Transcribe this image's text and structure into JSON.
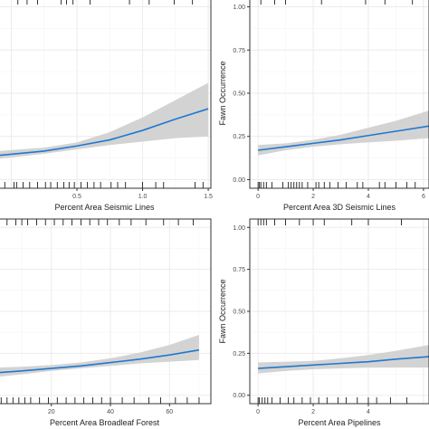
{
  "colors": {
    "panel_background": "#ffffff",
    "grid_major": "#ebebeb",
    "grid_minor": "#f5f5f5",
    "panel_border": "#333333",
    "line": "#1f78d1",
    "ribbon": "#d3d3d3",
    "rug": "#000000"
  },
  "chart_data": [
    {
      "id": "seismic-lines",
      "type": "line",
      "xlabel": "Percent Area Seismic Lines",
      "ylabel": "",
      "x_ticks": [
        "0.5",
        "1.0",
        "1.5"
      ],
      "x_tick_values": [
        0.5,
        1.0,
        1.5
      ],
      "y_ticks": [],
      "xlim": [
        -0.1,
        1.52
      ],
      "ylim": [
        -0.05,
        1.05
      ],
      "series": [
        {
          "x": [
            -0.1,
            0.25,
            0.5,
            0.75,
            1.0,
            1.25,
            1.5
          ],
          "y": [
            0.14,
            0.165,
            0.195,
            0.23,
            0.285,
            0.35,
            0.41
          ],
          "lower": [
            0.12,
            0.15,
            0.175,
            0.2,
            0.22,
            0.24,
            0.25
          ],
          "upper": [
            0.165,
            0.185,
            0.215,
            0.275,
            0.36,
            0.46,
            0.56
          ]
        }
      ],
      "rug_top": [
        0.05,
        0.12,
        0.2,
        0.38,
        0.42,
        0.47,
        0.6,
        0.9,
        1.05,
        1.24,
        1.38
      ],
      "rug_bottom": [
        -0.05,
        0.02,
        0.04,
        0.09,
        0.14,
        0.2,
        0.26,
        0.3,
        0.35,
        0.4,
        0.44,
        0.48,
        0.53,
        0.58,
        0.63,
        0.68,
        0.76,
        0.81,
        0.87,
        1.0,
        1.1,
        1.16,
        1.4,
        1.46
      ]
    },
    {
      "id": "3d-seismic-lines",
      "type": "line",
      "xlabel": "Percent Area 3D Seismic Lines",
      "ylabel": "Fawn Occurrence",
      "x_ticks": [
        "0",
        "2",
        "4",
        "6"
      ],
      "x_tick_values": [
        0,
        2,
        4,
        6
      ],
      "y_ticks": [
        "0.00",
        "0.25",
        "0.50",
        "0.75",
        "1.00"
      ],
      "y_tick_values": [
        0,
        0.25,
        0.5,
        0.75,
        1.0
      ],
      "xlim": [
        -0.3,
        6.2
      ],
      "ylim": [
        -0.05,
        1.05
      ],
      "series": [
        {
          "x": [
            0,
            1,
            2,
            3,
            4,
            5,
            6.2
          ],
          "y": [
            0.17,
            0.19,
            0.21,
            0.23,
            0.255,
            0.28,
            0.31
          ],
          "lower": [
            0.14,
            0.17,
            0.19,
            0.205,
            0.215,
            0.225,
            0.24
          ],
          "upper": [
            0.2,
            0.21,
            0.23,
            0.26,
            0.3,
            0.34,
            0.4
          ]
        }
      ],
      "rug_top": [
        0.1,
        0.6,
        1.0,
        2.3,
        3.9,
        4.6,
        5.6
      ],
      "rug_bottom": [
        0,
        0.05,
        0.1,
        0.2,
        0.3,
        0.5,
        0.9,
        1.1,
        1.2,
        1.3,
        1.4,
        1.5,
        1.6,
        1.8,
        2.1,
        2.2,
        2.4,
        2.6,
        2.9,
        3.2,
        3.6,
        3.8,
        4.4,
        4.6,
        5.0,
        5.4,
        5.7
      ]
    },
    {
      "id": "broadleaf-forest",
      "type": "line",
      "xlabel": "Percent Area Broadleaf Forest",
      "ylabel": "",
      "x_ticks": [
        "20",
        "40",
        "60"
      ],
      "x_tick_values": [
        20,
        40,
        60
      ],
      "y_ticks": [],
      "xlim": [
        2,
        74
      ],
      "ylim": [
        -0.05,
        1.05
      ],
      "series": [
        {
          "x": [
            2,
            10,
            20,
            30,
            40,
            50,
            60,
            70
          ],
          "y": [
            0.135,
            0.145,
            0.16,
            0.175,
            0.195,
            0.215,
            0.24,
            0.27
          ],
          "lower": [
            0.11,
            0.125,
            0.145,
            0.16,
            0.175,
            0.19,
            0.2,
            0.21
          ],
          "upper": [
            0.165,
            0.17,
            0.18,
            0.195,
            0.22,
            0.255,
            0.3,
            0.36
          ]
        }
      ],
      "rug_top": [
        5,
        8,
        10,
        12,
        15,
        18,
        21,
        24,
        27,
        30,
        33,
        36,
        39,
        43,
        47,
        52,
        58,
        63,
        68
      ],
      "rug_bottom": [
        3,
        5,
        7,
        9,
        11,
        13,
        16,
        19,
        22,
        25,
        28,
        31,
        34,
        37,
        40,
        44,
        48,
        53,
        57,
        62,
        66,
        70
      ]
    },
    {
      "id": "pipelines",
      "type": "line",
      "xlabel": "Percent Area Pipelines",
      "ylabel": "Fawn Occurrence",
      "x_ticks": [
        "0",
        "2",
        "4"
      ],
      "x_tick_values": [
        0,
        2,
        4
      ],
      "y_ticks": [
        "0.00",
        "0.25",
        "0.50",
        "0.75",
        "1.00"
      ],
      "y_tick_values": [
        0,
        0.25,
        0.5,
        0.75,
        1.0
      ],
      "xlim": [
        -0.3,
        6.2
      ],
      "ylim": [
        -0.05,
        1.05
      ],
      "series": [
        {
          "x": [
            0,
            1,
            2,
            3,
            4,
            5,
            6.2
          ],
          "y": [
            0.16,
            0.17,
            0.18,
            0.19,
            0.2,
            0.215,
            0.23
          ],
          "lower": [
            0.13,
            0.145,
            0.155,
            0.16,
            0.165,
            0.165,
            0.165
          ],
          "upper": [
            0.195,
            0.2,
            0.205,
            0.22,
            0.24,
            0.265,
            0.3
          ]
        }
      ],
      "rug_top": [
        0,
        0.1,
        0.2,
        0.3,
        0.6,
        1.0,
        1.5,
        2.0,
        2.4,
        3.4,
        4.0,
        5.2
      ],
      "rug_bottom": [
        0,
        0.05,
        0.15,
        0.25,
        0.35,
        0.5,
        0.8,
        1.1,
        1.3,
        1.6,
        1.9,
        2.2,
        2.5,
        2.9,
        3.2,
        3.6,
        4.0,
        4.3,
        4.8,
        5.4
      ]
    }
  ]
}
